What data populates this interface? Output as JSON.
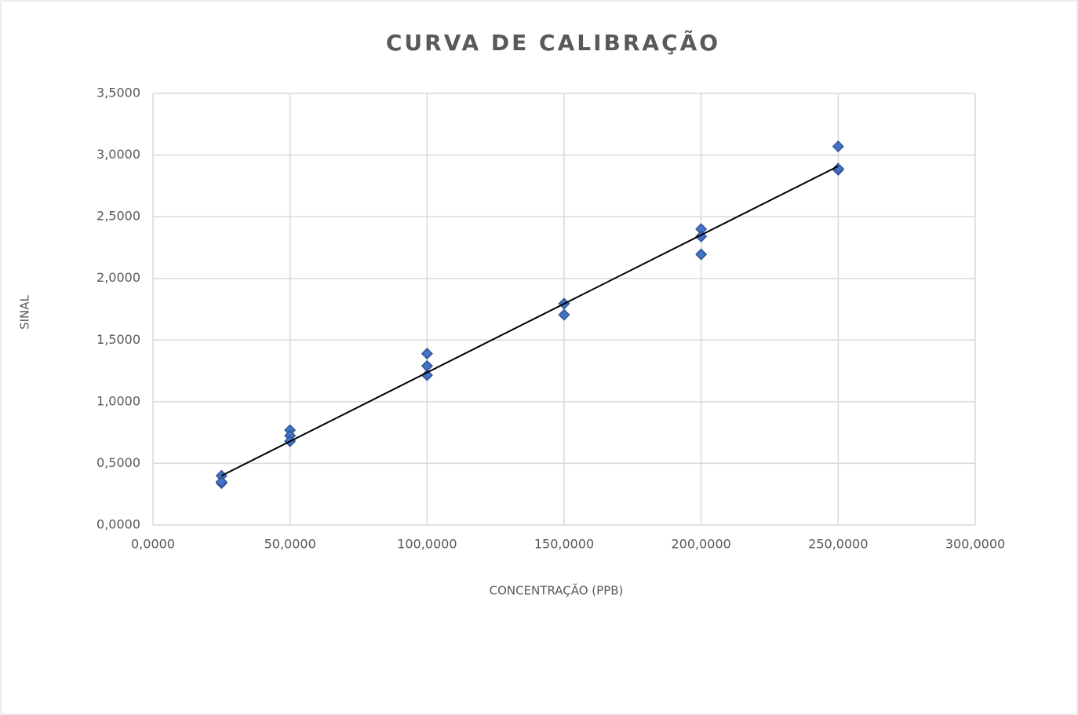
{
  "chart_data": {
    "type": "scatter",
    "title": "CURVA DE CALIBRAÇÃO",
    "x_label": "CONCENTRAÇÃO (PPB)",
    "y_label": "SINAL",
    "x": [
      25,
      25,
      25,
      50,
      50,
      50,
      100,
      100,
      100,
      150,
      150,
      200,
      200,
      200,
      250,
      250,
      250
    ],
    "values": [
      0.4,
      0.34,
      0.35,
      0.77,
      0.725,
      0.68,
      1.39,
      1.29,
      1.215,
      1.795,
      1.705,
      2.4,
      2.34,
      2.195,
      3.07,
      2.88,
      2.89
    ],
    "color": "#4472c4",
    "trendline": {
      "x": [
        25,
        250
      ],
      "values": [
        0.4,
        2.91
      ],
      "color": "#000000"
    },
    "xlim": [
      0,
      300
    ],
    "xticks": [
      {
        "value": 0,
        "label": "0,0000"
      },
      {
        "value": 50,
        "label": "50,0000"
      },
      {
        "value": 100,
        "label": "100,0000"
      },
      {
        "value": 150,
        "label": "150,0000"
      },
      {
        "value": 200,
        "label": "200,0000"
      },
      {
        "value": 250,
        "label": "250,0000"
      },
      {
        "value": 300,
        "label": "300,0000"
      }
    ],
    "ylim": [
      0,
      3.5
    ],
    "yticks": [
      {
        "value": 0,
        "label": "0,0000"
      },
      {
        "value": 0.5,
        "label": "0,5000"
      },
      {
        "value": 1,
        "label": "1,0000"
      },
      {
        "value": 1.5,
        "label": "1,5000"
      },
      {
        "value": 2,
        "label": "2,0000"
      },
      {
        "value": 2.5,
        "label": "2,5000"
      },
      {
        "value": 3,
        "label": "3,0000"
      },
      {
        "value": 3.5,
        "label": "3,5000"
      }
    ],
    "grid": true
  }
}
